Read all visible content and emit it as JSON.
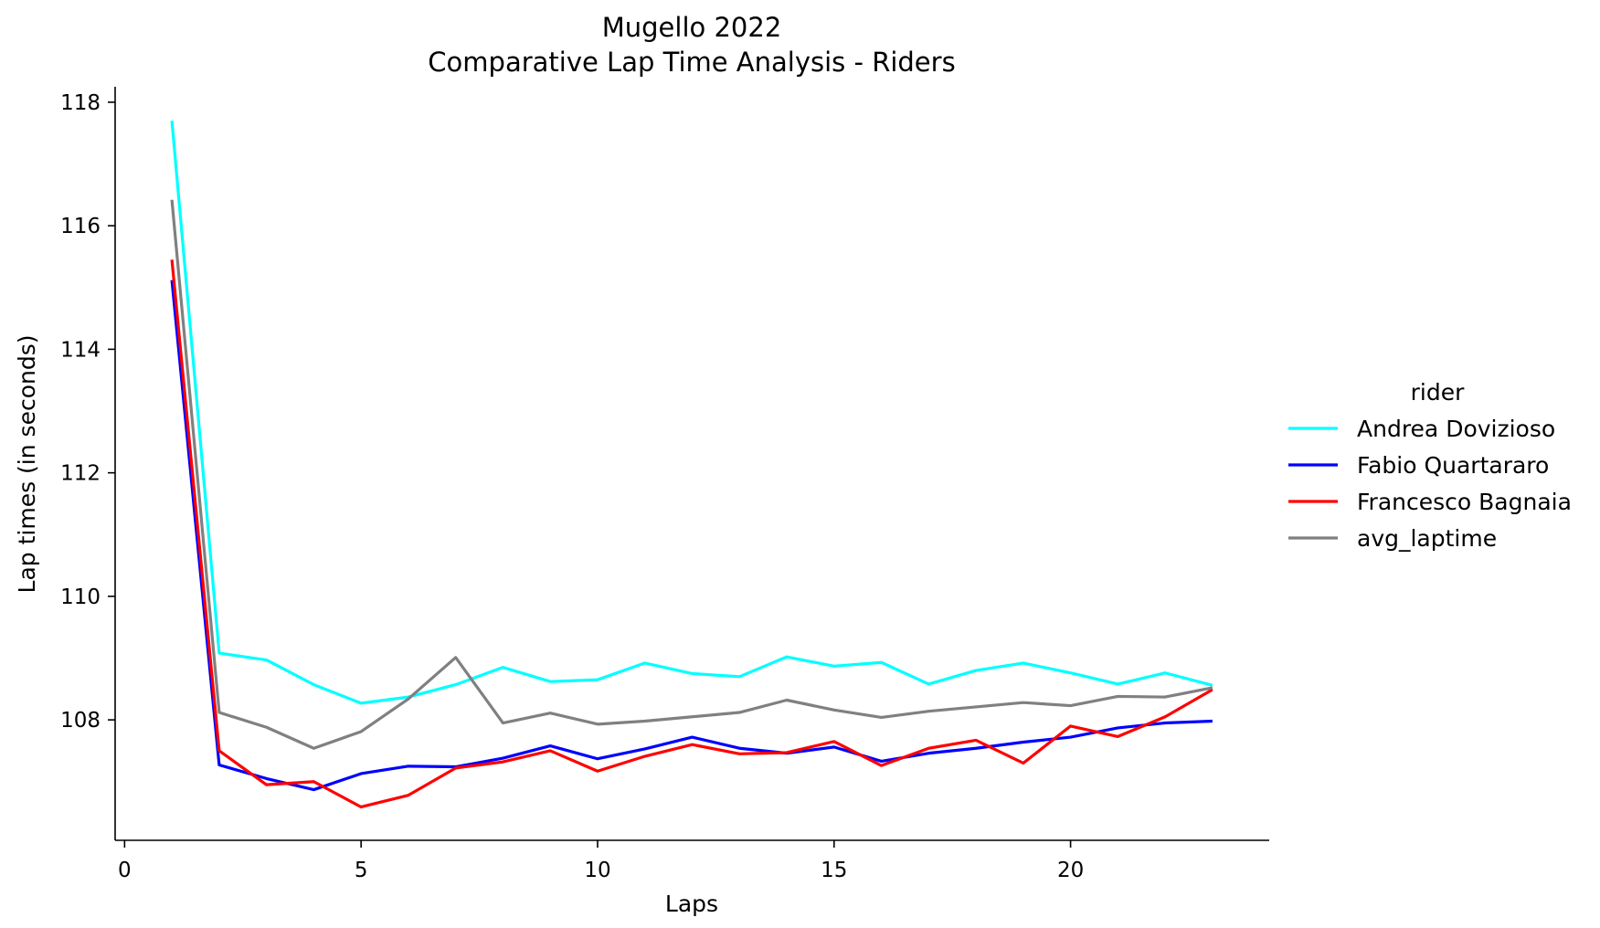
{
  "chart_data": {
    "type": "line",
    "title_line1": "Mugello 2022",
    "title_line2": "Comparative Lap Time Analysis - Riders",
    "xlabel": "Laps",
    "ylabel": "Lap times (in seconds)",
    "xlim": [
      -0.2,
      24.2
    ],
    "ylim": [
      106.05,
      118.25
    ],
    "xticks": [
      0,
      5,
      10,
      15,
      20
    ],
    "yticks": [
      108,
      110,
      112,
      114,
      116,
      118
    ],
    "grid": false,
    "legend": {
      "title": "rider",
      "placement": "right"
    },
    "x": [
      1,
      2,
      3,
      4,
      5,
      6,
      7,
      8,
      9,
      10,
      11,
      12,
      13,
      14,
      15,
      16,
      17,
      18,
      19,
      20,
      21,
      22,
      23
    ],
    "series": [
      {
        "name": "Andrea Dovizioso",
        "color": "#00ffff",
        "values": [
          117.7,
          109.08,
          108.97,
          108.57,
          108.27,
          108.37,
          108.57,
          108.85,
          108.62,
          108.65,
          108.92,
          108.75,
          108.7,
          109.02,
          108.87,
          108.93,
          108.58,
          108.8,
          108.92,
          108.76,
          108.58,
          108.76,
          108.56
        ]
      },
      {
        "name": "Fabio Quartararo",
        "color": "#0000ff",
        "values": [
          115.12,
          107.27,
          107.05,
          106.87,
          107.13,
          107.25,
          107.24,
          107.38,
          107.58,
          107.37,
          107.53,
          107.72,
          107.54,
          107.46,
          107.56,
          107.33,
          107.46,
          107.54,
          107.64,
          107.72,
          107.87,
          107.95,
          107.98
        ]
      },
      {
        "name": "Francesco Bagnaia",
        "color": "#ff0000",
        "values": [
          115.45,
          107.5,
          106.95,
          107.0,
          106.59,
          106.78,
          107.22,
          107.32,
          107.5,
          107.17,
          107.41,
          107.6,
          107.45,
          107.47,
          107.65,
          107.26,
          107.54,
          107.67,
          107.3,
          107.9,
          107.73,
          108.05,
          108.49
        ]
      },
      {
        "name": "avg_laptime",
        "color": "#808080",
        "values": [
          116.42,
          108.12,
          107.88,
          107.54,
          107.81,
          108.34,
          109.01,
          107.95,
          108.11,
          107.93,
          107.98,
          108.05,
          108.12,
          108.32,
          108.16,
          108.04,
          108.14,
          108.21,
          108.28,
          108.23,
          108.38,
          108.37,
          108.52
        ]
      }
    ]
  }
}
